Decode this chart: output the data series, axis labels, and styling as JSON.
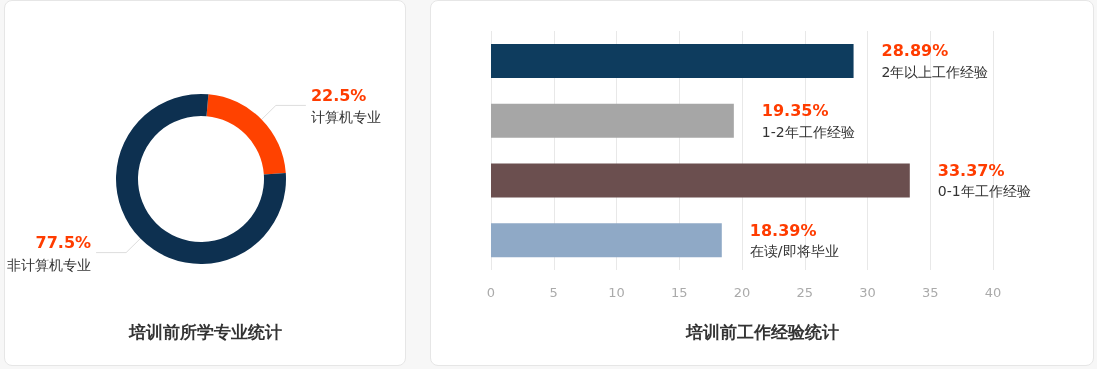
{
  "chart_data": [
    {
      "type": "donut",
      "title": "培训前所学专业统计",
      "categories": [
        "计算机专业",
        "非计算机专业"
      ],
      "values": [
        22.5,
        77.5
      ],
      "colors": [
        "#ff4200",
        "#0d3050"
      ],
      "value_labels": [
        "22.5%",
        "77.5%"
      ],
      "legend": false
    },
    {
      "type": "bar",
      "orientation": "horizontal",
      "title": "培训前工作经验统计",
      "categories": [
        "2年以上工作经验",
        "1-2年工作经验",
        "0-1年工作经验",
        "在读/即将毕业"
      ],
      "values": [
        28.89,
        19.35,
        33.37,
        18.39
      ],
      "colors": [
        "#0e3c5e",
        "#a6a6a6",
        "#6b4f4f",
        "#8fa9c6"
      ],
      "value_labels": [
        "28.89%",
        "19.35%",
        "33.37%",
        "18.39%"
      ],
      "xlim": [
        0,
        40
      ],
      "xticks": [
        0,
        5,
        10,
        15,
        20,
        25,
        30,
        35,
        40
      ],
      "grid": "x",
      "tick_labels": "x",
      "legend": false
    }
  ]
}
